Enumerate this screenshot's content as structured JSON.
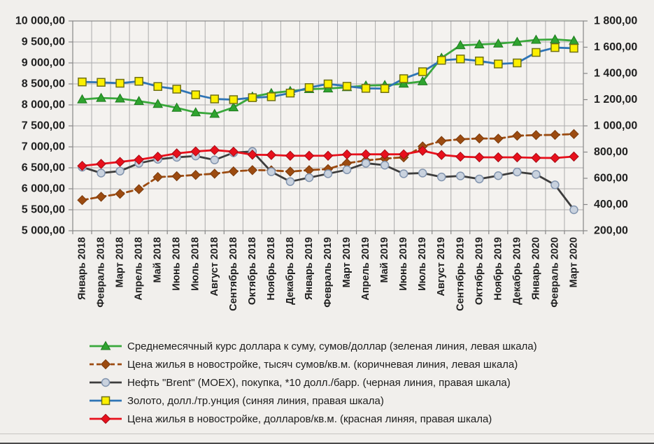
{
  "chart_data": {
    "type": "line",
    "title": "",
    "grid": true,
    "legend_position": "bottom",
    "categories": [
      "Январь 2018",
      "Февраль 2018",
      "Март 2018",
      "Апрель 2018",
      "Май 2018",
      "Июнь 2018",
      "Июль 2018",
      "Август 2018",
      "Сентябрь 2018",
      "Октябрь 2018",
      "Ноябрь 2018",
      "Декабрь 2018",
      "Январь 2019",
      "Февраль 2019",
      "Март 2019",
      "Апрель 2019",
      "Май 2019",
      "Июнь 2019",
      "Июль 2019",
      "Август 2019",
      "Сентябрь 2019",
      "Октябрь 2019",
      "Ноябрь 2019",
      "Декабрь 2019",
      "Январь 2020",
      "Февраль 2020",
      "Март 2020"
    ],
    "left_axis": {
      "min": 5000,
      "max": 10000,
      "step": 500,
      "tick_labels": [
        "10 000,00",
        "9 500,00",
        "9 000,00",
        "8 500,00",
        "8 000,00",
        "7 500,00",
        "7 000,00",
        "6 500,00",
        "6 000,00",
        "5 500,00",
        "5 000,00"
      ]
    },
    "right_axis": {
      "min": 200,
      "max": 1800,
      "step": 200,
      "tick_labels": [
        "1 800,00",
        "1 600,00",
        "1 400,00",
        "1 200,00",
        "1 000,00",
        "800,00",
        "600,00",
        "400,00",
        "200,00"
      ]
    },
    "series": [
      {
        "name": "Среднемесячный курс доллара к суму, сумов/доллар (зеленая линия, левая шкала)",
        "axis": "left",
        "color": "#3aa83c",
        "marker": "triangle",
        "marker_fill": "#2fa42f",
        "marker_stroke": "#1d7a1d",
        "dash": "",
        "values": [
          8130,
          8165,
          8150,
          8090,
          8020,
          7930,
          7820,
          7785,
          7940,
          8195,
          8280,
          8330,
          8375,
          8390,
          8420,
          8460,
          8470,
          8505,
          8560,
          9120,
          9420,
          9440,
          9460,
          9500,
          9550,
          9560,
          9530
        ]
      },
      {
        "name": "Цена жилья в новостройке, тысяч сумов/кв.м. (коричневая линия, левая шкала)",
        "axis": "left",
        "color": "#9c4b10",
        "marker": "diamond",
        "marker_fill": "#9c4b10",
        "marker_stroke": "#7a3a0c",
        "dash": "8,5",
        "values": [
          5730,
          5810,
          5880,
          5990,
          6280,
          6300,
          6330,
          6360,
          6415,
          6445,
          6440,
          6410,
          6445,
          6470,
          6610,
          6675,
          6720,
          6750,
          7010,
          7140,
          7180,
          7200,
          7195,
          7265,
          7280,
          7285,
          7305
        ]
      },
      {
        "name": "Нефть \"Brent\" (MOEX), покупка, *10 долл./барр. (черная линия, правая шкала)",
        "axis": "right",
        "color": "#3d3d3d",
        "marker": "circle",
        "marker_fill": "#c9d2de",
        "marker_stroke": "#8294ae",
        "dash": "",
        "values": [
          685,
          640,
          655,
          715,
          745,
          760,
          770,
          740,
          795,
          805,
          650,
          575,
          605,
          635,
          665,
          715,
          700,
          635,
          640,
          610,
          618,
          595,
          620,
          648,
          630,
          550,
          360
        ]
      },
      {
        "name": "Золото, долл./тр.унция (синяя линия, правая шкала)",
        "axis": "right",
        "color": "#2e74b5",
        "marker": "square",
        "marker_fill": "#fcf000",
        "marker_stroke": "#6f7015",
        "dash": "",
        "values": [
          1335,
          1332,
          1325,
          1340,
          1300,
          1280,
          1237,
          1205,
          1200,
          1215,
          1222,
          1250,
          1292,
          1320,
          1302,
          1286,
          1284,
          1360,
          1413,
          1500,
          1510,
          1495,
          1472,
          1480,
          1560,
          1597,
          1592
        ]
      },
      {
        "name": "Цена жилья в новостройке, долларов/кв.м. (красная линяя, правая шкала)",
        "axis": "right",
        "color": "#e8101c",
        "marker": "diamond",
        "marker_fill": "#e8101c",
        "marker_stroke": "#a50b14",
        "dash": "",
        "values": [
          695,
          710,
          725,
          742,
          765,
          790,
          805,
          815,
          803,
          780,
          778,
          772,
          772,
          772,
          782,
          783,
          783,
          783,
          810,
          778,
          765,
          760,
          760,
          760,
          756,
          755,
          766
        ]
      }
    ]
  }
}
